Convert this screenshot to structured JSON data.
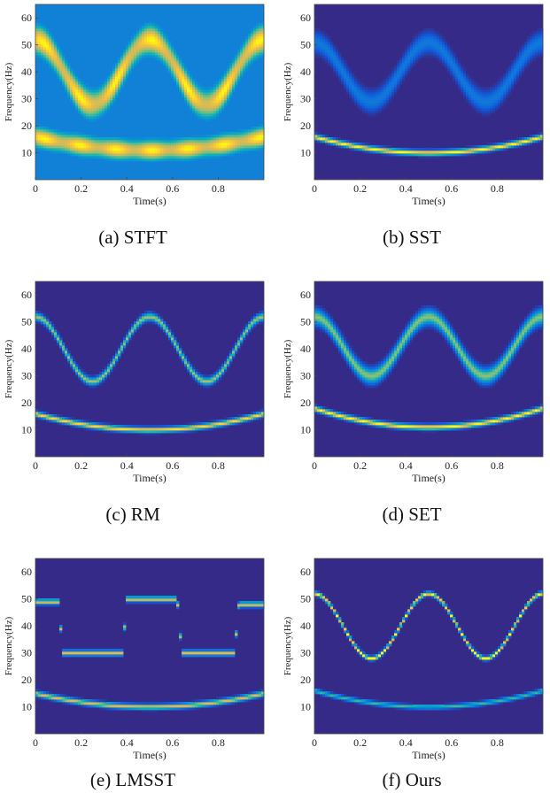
{
  "chart_data": [
    {
      "type": "heatmap",
      "method": "stft",
      "caption": "(a) STFT",
      "xlabel": "Time(s)",
      "ylabel": "Frequency(Hz)",
      "xlim": [
        0,
        1
      ],
      "ylim": [
        0,
        65
      ],
      "xticks": [
        0,
        0.2,
        0.4,
        0.6,
        0.8
      ],
      "xtick_labels": [
        "0",
        "0.2",
        "0.4",
        "0.6",
        "0.8"
      ],
      "yticks": [
        10,
        20,
        30,
        40,
        50,
        60
      ],
      "ytick_labels": [
        "10",
        "20",
        "30",
        "40",
        "50",
        "60"
      ],
      "components": [
        {
          "kind": "cosine",
          "center_hz": 40,
          "amplitude_hz": 12,
          "cycles": 2,
          "band_hz": 6.5,
          "intensity": 1.0
        },
        {
          "kind": "parabola",
          "min_hz": 11,
          "edge_hz": 16,
          "band_hz": 4.5,
          "intensity": 1.0
        }
      ],
      "background": 0.32
    },
    {
      "type": "heatmap",
      "method": "sst",
      "caption": "(b) SST",
      "xlabel": "Time(s)",
      "ylabel": "Frequency(Hz)",
      "xlim": [
        0,
        1
      ],
      "ylim": [
        0,
        65
      ],
      "xticks": [
        0,
        0.2,
        0.4,
        0.6,
        0.8
      ],
      "xtick_labels": [
        "0",
        "0.2",
        "0.4",
        "0.6",
        "0.8"
      ],
      "yticks": [
        10,
        20,
        30,
        40,
        50,
        60
      ],
      "ytick_labels": [
        "10",
        "20",
        "30",
        "40",
        "50",
        "60"
      ],
      "components": [
        {
          "kind": "cosine",
          "center_hz": 40,
          "amplitude_hz": 11,
          "cycles": 2,
          "band_hz": 3.5,
          "intensity": 0.28
        },
        {
          "kind": "parabola",
          "min_hz": 10,
          "edge_hz": 16,
          "band_hz": 0.9,
          "intensity": 1.0
        }
      ],
      "background": 0.0
    },
    {
      "type": "heatmap",
      "method": "rm",
      "caption": "(c) RM",
      "xlabel": "Time(s)",
      "ylabel": "Frequency(Hz)",
      "xlim": [
        0,
        1
      ],
      "ylim": [
        0,
        65
      ],
      "xticks": [
        0,
        0.2,
        0.4,
        0.6,
        0.8
      ],
      "xtick_labels": [
        "0",
        "0.2",
        "0.4",
        "0.6",
        "0.8"
      ],
      "yticks": [
        10,
        20,
        30,
        40,
        50,
        60
      ],
      "ytick_labels": [
        "10",
        "20",
        "30",
        "40",
        "50",
        "60"
      ],
      "components": [
        {
          "kind": "cosine",
          "center_hz": 40,
          "amplitude_hz": 12,
          "cycles": 2,
          "band_hz": 1.3,
          "intensity": 0.75
        },
        {
          "kind": "parabola",
          "min_hz": 10,
          "edge_hz": 16,
          "band_hz": 0.9,
          "intensity": 0.95
        }
      ],
      "background": 0.0
    },
    {
      "type": "heatmap",
      "method": "set",
      "caption": "(d) SET",
      "xlabel": "Time(s)",
      "ylabel": "Frequency(Hz)",
      "xlim": [
        0,
        1
      ],
      "ylim": [
        0,
        65
      ],
      "xticks": [
        0,
        0.2,
        0.4,
        0.6,
        0.8
      ],
      "xtick_labels": [
        "0",
        "0.2",
        "0.4",
        "0.6",
        "0.8"
      ],
      "yticks": [
        10,
        20,
        30,
        40,
        50,
        60
      ],
      "ytick_labels": [
        "10",
        "20",
        "30",
        "40",
        "50",
        "60"
      ],
      "components": [
        {
          "kind": "cosine",
          "center_hz": 41,
          "amplitude_hz": 11,
          "cycles": 2,
          "band_hz": 2.6,
          "intensity": 0.72
        },
        {
          "kind": "parabola",
          "min_hz": 11,
          "edge_hz": 18,
          "band_hz": 0.9,
          "intensity": 1.0
        }
      ],
      "background": 0.0
    },
    {
      "type": "heatmap",
      "method": "lmsst",
      "caption": "(e) LMSST",
      "xlabel": "Time(s)",
      "ylabel": "Frequency(Hz)",
      "xlim": [
        0,
        1
      ],
      "ylim": [
        0,
        65
      ],
      "xticks": [
        0,
        0.2,
        0.4,
        0.6,
        0.8
      ],
      "xtick_labels": [
        "0",
        "0.2",
        "0.4",
        "0.6",
        "0.8"
      ],
      "yticks": [
        10,
        20,
        30,
        40,
        50,
        60
      ],
      "ytick_labels": [
        "10",
        "20",
        "30",
        "40",
        "50",
        "60"
      ],
      "components": [
        {
          "kind": "staircase",
          "levels_hz": [
            49,
            30,
            50,
            30,
            48
          ],
          "band_hz": 0.9,
          "intensity": 0.85
        },
        {
          "kind": "parabola",
          "min_hz": 10,
          "edge_hz": 15,
          "band_hz": 0.9,
          "intensity": 0.85
        }
      ],
      "background": 0.0
    },
    {
      "type": "heatmap",
      "method": "ours",
      "caption": "(f) Ours",
      "xlabel": "Time(s)",
      "ylabel": "Frequency(Hz)",
      "xlim": [
        0,
        1
      ],
      "ylim": [
        0,
        65
      ],
      "xticks": [
        0,
        0.2,
        0.4,
        0.6,
        0.8
      ],
      "xtick_labels": [
        "0",
        "0.2",
        "0.4",
        "0.6",
        "0.8"
      ],
      "yticks": [
        10,
        20,
        30,
        40,
        50,
        60
      ],
      "ytick_labels": [
        "10",
        "20",
        "30",
        "40",
        "50",
        "60"
      ],
      "components": [
        {
          "kind": "cosine",
          "center_hz": 40,
          "amplitude_hz": 12,
          "cycles": 2,
          "band_hz": 0.7,
          "intensity": 1.0
        },
        {
          "kind": "parabola",
          "min_hz": 10,
          "edge_hz": 16,
          "band_hz": 0.7,
          "intensity": 0.6
        }
      ],
      "background": 0.0
    }
  ]
}
